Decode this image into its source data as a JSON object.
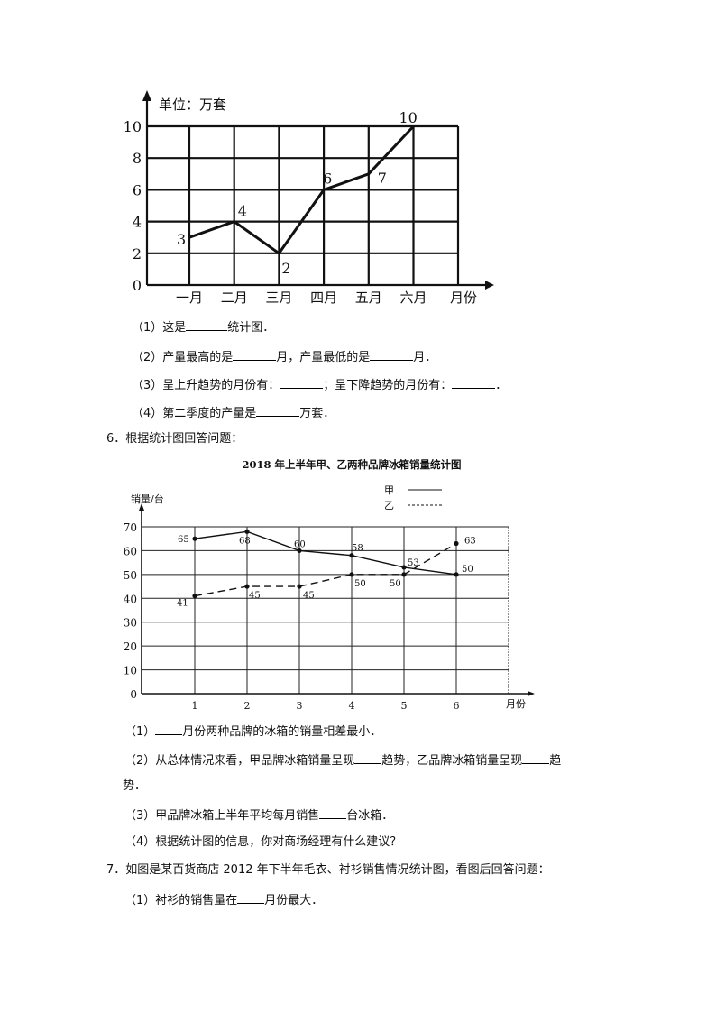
{
  "chart_data": [
    {
      "type": "line",
      "unit_label": "单位：万套",
      "xlabel": "月份",
      "categories": [
        "一月",
        "二月",
        "三月",
        "四月",
        "五月",
        "六月"
      ],
      "values": [
        3,
        4,
        2,
        6,
        7,
        10
      ],
      "data_labels": [
        "3",
        "4",
        "2",
        "6",
        "7",
        "10"
      ],
      "yticks": [
        "0",
        "2",
        "4",
        "6",
        "8",
        "10"
      ],
      "ylim": [
        0,
        10
      ],
      "grid": true
    },
    {
      "type": "line",
      "title": "2018 年上半年甲、乙两种品牌冰箱销量统计图",
      "ylabel": "销量/台",
      "xlabel": "月份",
      "categories": [
        "1",
        "2",
        "3",
        "4",
        "5",
        "6"
      ],
      "yticks": [
        "0",
        "10",
        "20",
        "30",
        "40",
        "50",
        "60",
        "70"
      ],
      "ylim": [
        0,
        70
      ],
      "grid": true,
      "legend": "top-right",
      "series": [
        {
          "name": "甲",
          "style": "solid",
          "values": [
            65,
            68,
            60,
            58,
            53,
            50
          ],
          "data_labels": [
            "65",
            "68",
            "60",
            "58",
            "53",
            "50"
          ]
        },
        {
          "name": "乙",
          "style": "dashed",
          "values": [
            41,
            45,
            45,
            50,
            50,
            63
          ],
          "data_labels": [
            "41",
            "45",
            "45",
            "50",
            "50",
            "63"
          ]
        }
      ]
    }
  ],
  "q5": {
    "q1": [
      "（1）这是",
      "统计图．"
    ],
    "q2": [
      "（2）产量最高的是",
      "月，产量最低的是",
      "月．"
    ],
    "q3": [
      "（3）呈上升趋势的月份有：",
      "；呈下降趋势的月份有：",
      "．"
    ],
    "q4": [
      "（4）第二季度的产量是",
      "万套．"
    ]
  },
  "q6": {
    "heading": "6．根据统计图回答问题：",
    "q1": [
      "（1）",
      "月份两种品牌的冰箱的销量相差最小．"
    ],
    "q2": [
      "（2）从总体情况来看，甲品牌冰箱销量呈现",
      "趋势，乙品牌冰箱销量呈现",
      "趋"
    ],
    "q2_cont": "势．",
    "q3": [
      "（3）甲品牌冰箱上半年平均每月销售",
      "台冰箱．"
    ],
    "q4": "（4）根据统计图的信息，你对商场经理有什么建议？"
  },
  "q7": {
    "heading": "7．如图是某百货商店 2012 年下半年毛衣、衬衫销售情况统计图，看图后回答问题：",
    "q1": [
      "（1）衬衫的销售量在",
      "月份最大．"
    ]
  }
}
